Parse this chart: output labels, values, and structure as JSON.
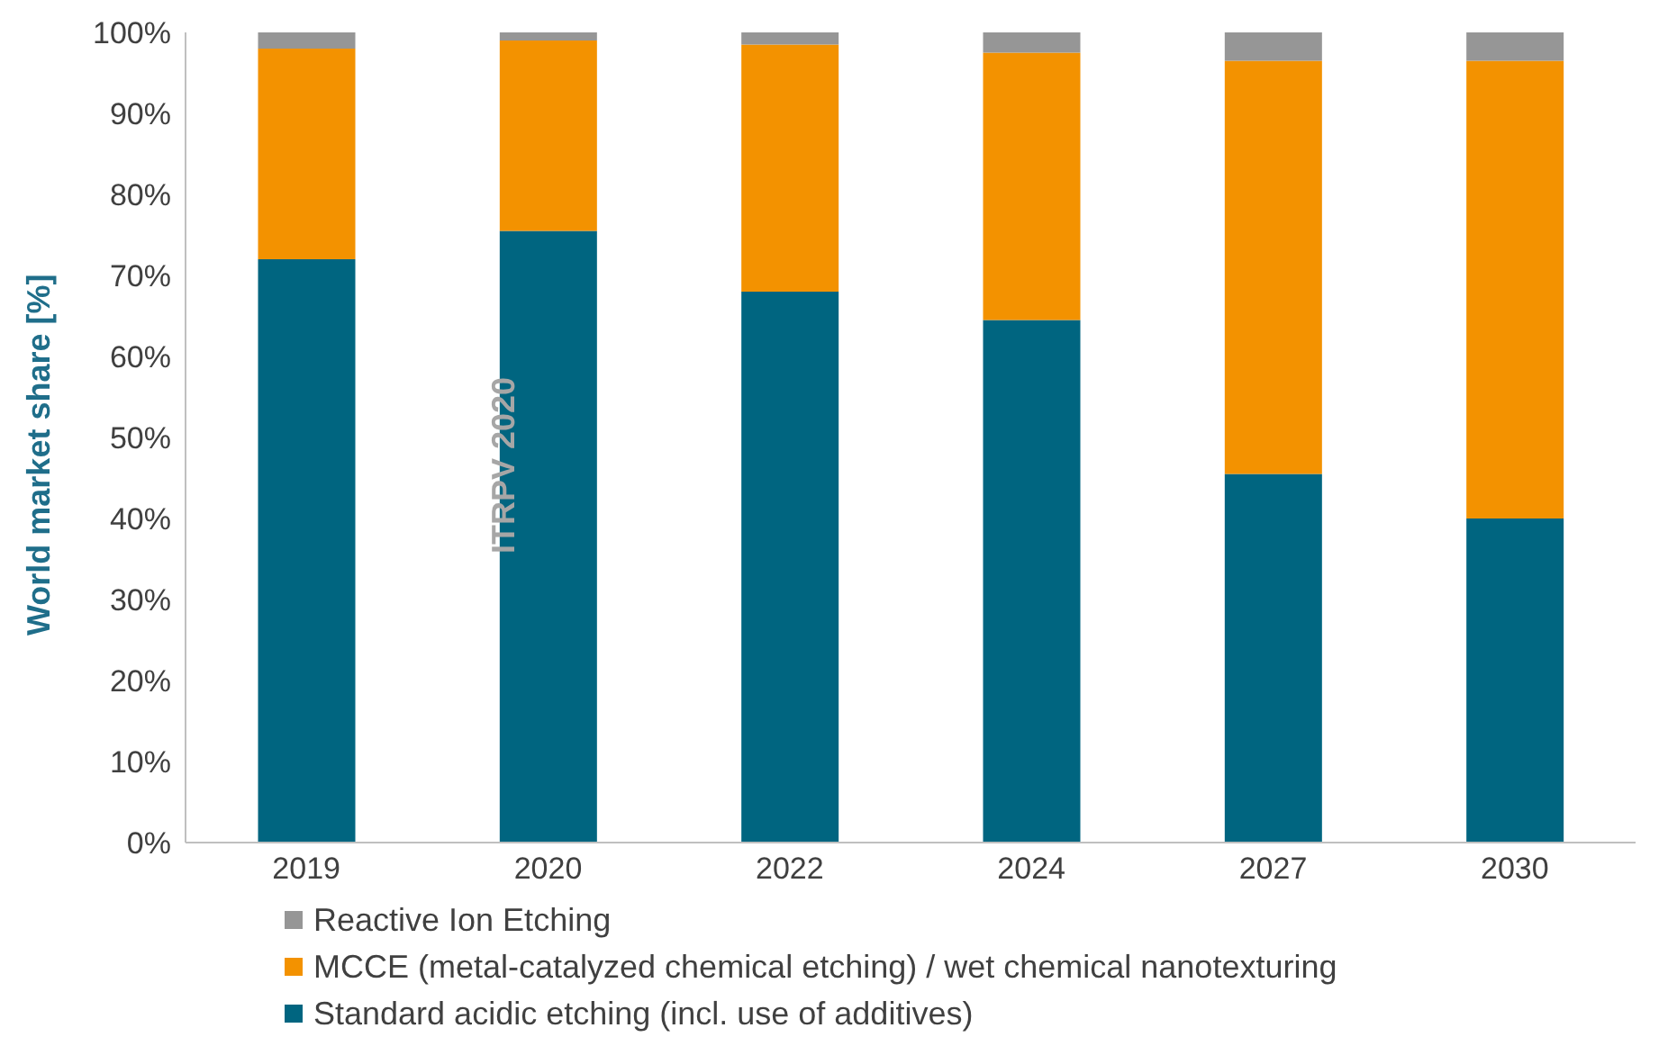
{
  "chart_data": {
    "type": "bar",
    "stacked": true,
    "ylabel": "World market share [%]",
    "categories": [
      "2019",
      "2020",
      "2022",
      "2024",
      "2027",
      "2030"
    ],
    "series": [
      {
        "name": "Standard acidic etching (incl. use of additives)",
        "color": "#006580",
        "values": [
          72,
          75.5,
          68,
          64.5,
          45.5,
          40
        ]
      },
      {
        "name": "MCCE (metal-catalyzed chemical etching) / wet chemical nanotexturing",
        "color": "#f39200",
        "values": [
          26,
          23.5,
          30.5,
          33,
          51,
          56.5
        ]
      },
      {
        "name": "Reactive Ion Etching",
        "color": "#969696",
        "values": [
          2,
          1,
          1.5,
          2.5,
          3.5,
          3.5
        ]
      }
    ],
    "ylim": [
      0,
      100
    ],
    "yticks": [
      {
        "value": 0,
        "label": "0%"
      },
      {
        "value": 10,
        "label": "10%"
      },
      {
        "value": 20,
        "label": "20%"
      },
      {
        "value": 30,
        "label": "30%"
      },
      {
        "value": 40,
        "label": "40%"
      },
      {
        "value": 50,
        "label": "50%"
      },
      {
        "value": 60,
        "label": "60%"
      },
      {
        "value": 70,
        "label": "70%"
      },
      {
        "value": 80,
        "label": "80%"
      },
      {
        "value": 90,
        "label": "90%"
      },
      {
        "value": 100,
        "label": "100%"
      }
    ],
    "grid": false,
    "legend": "bottom",
    "annotations": [
      "ITRPV 2020"
    ]
  }
}
